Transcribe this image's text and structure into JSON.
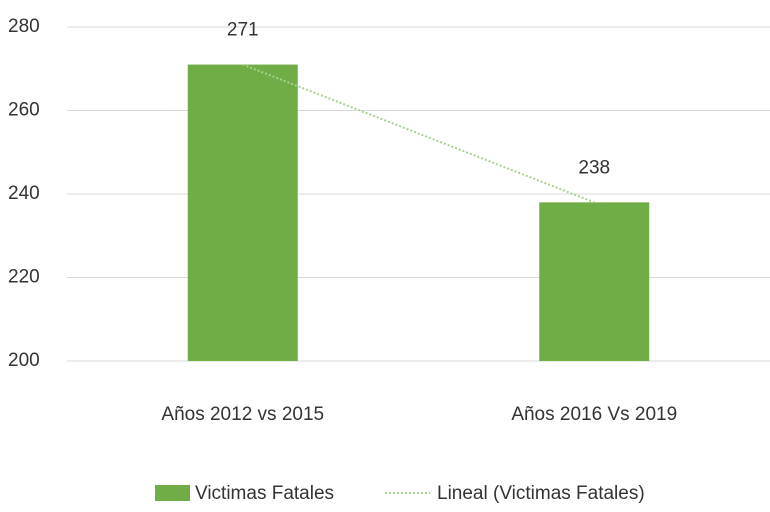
{
  "chart_data": {
    "type": "bar",
    "categories": [
      "Años 2012 vs 2015",
      "Años 2016 Vs 2019"
    ],
    "series": [
      {
        "name": "Victimas Fatales",
        "color": "#70ad47",
        "values": [
          271,
          238
        ]
      }
    ],
    "trendline": {
      "name": "Lineal (Victimas Fatales)",
      "color": "#a9d18e"
    },
    "ylim": [
      200,
      280
    ],
    "yticks": [
      200,
      220,
      240,
      260,
      280
    ],
    "grid": true,
    "legend": "bottom"
  }
}
